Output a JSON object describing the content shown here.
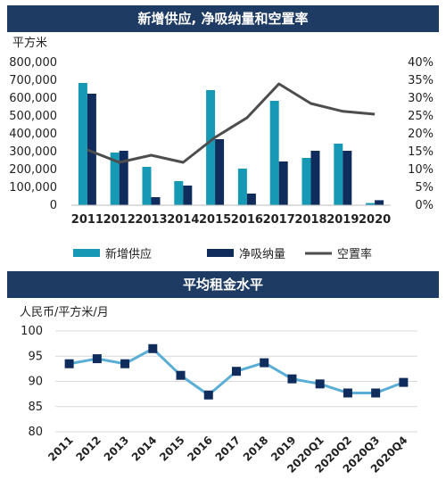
{
  "chart_data": [
    {
      "type": "bar",
      "title": "新增供应, 净吸纳量和空置率",
      "ylabel": "平方米",
      "categories": [
        "2011",
        "2012",
        "2013",
        "2014",
        "2015",
        "2016",
        "2017",
        "2018",
        "2019",
        "2020"
      ],
      "ylim": [
        0,
        800000
      ],
      "y_ticks": [
        "0",
        "100,000",
        "200,000",
        "300,000",
        "400,000",
        "500,000",
        "600,000",
        "700,000",
        "800,000"
      ],
      "y2lim": [
        0,
        0.4
      ],
      "y2_ticks": [
        "0%",
        "5%",
        "10%",
        "15%",
        "20%",
        "25%",
        "30%",
        "35%",
        "40%"
      ],
      "series": [
        {
          "name": "新增供应",
          "kind": "bar",
          "axis": "left",
          "color": "#1699b5",
          "values": [
            685000,
            295000,
            215000,
            135000,
            645000,
            205000,
            585000,
            265000,
            345000,
            12000
          ]
        },
        {
          "name": "净吸纳量",
          "kind": "bar",
          "axis": "left",
          "color": "#0f2c5c",
          "values": [
            625000,
            305000,
            45000,
            110000,
            370000,
            65000,
            245000,
            305000,
            305000,
            28000
          ]
        },
        {
          "name": "空置率",
          "kind": "line",
          "axis": "right",
          "color": "#4d4d4d",
          "values": [
            0.155,
            0.12,
            0.14,
            0.12,
            0.19,
            0.245,
            0.34,
            0.285,
            0.263,
            0.255
          ]
        }
      ],
      "legend": "bottom"
    },
    {
      "type": "line",
      "title": "平均租金水平",
      "ylabel": "人民币/平方米/月",
      "categories": [
        "2011",
        "2012",
        "2013",
        "2014",
        "2015",
        "2016",
        "2017",
        "2018",
        "2019",
        "2020Q1",
        "2020Q2",
        "2020Q3",
        "2020Q4"
      ],
      "ylim": [
        80,
        100
      ],
      "y_ticks": [
        "80",
        "85",
        "90",
        "95",
        "100"
      ],
      "grid": true,
      "series": [
        {
          "line_color": "#5aaed6",
          "marker_color": "#0f2c5c",
          "values": [
            93.5,
            94.5,
            93.5,
            96.5,
            91.2,
            87.3,
            92.0,
            93.7,
            90.5,
            89.5,
            87.7,
            87.7,
            89.8
          ]
        }
      ]
    }
  ]
}
